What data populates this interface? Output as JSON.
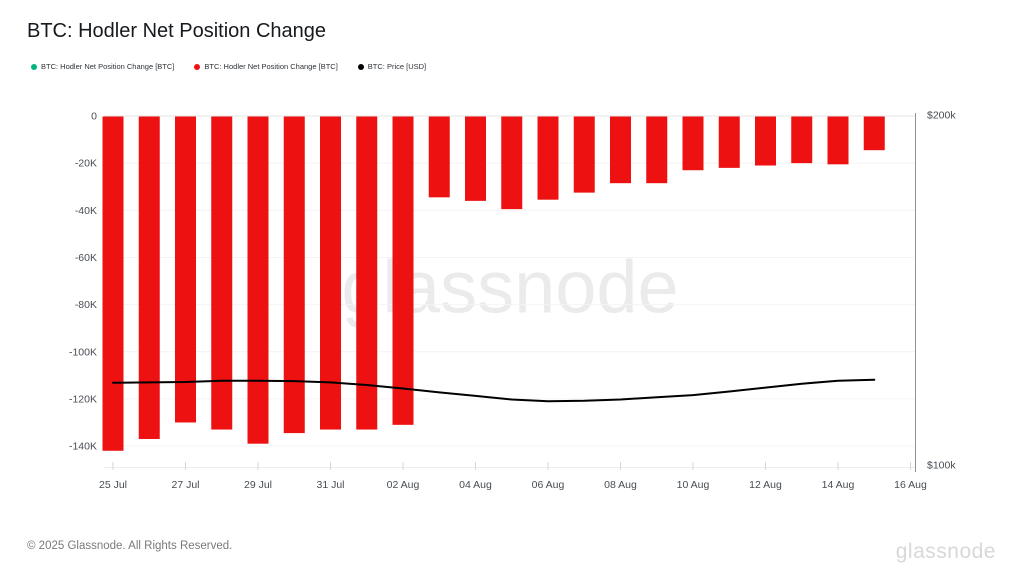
{
  "page": {
    "title": "BTC: Hodler Net Position Change"
  },
  "legend": {
    "items": [
      {
        "label": "BTC: Hodler Net Position Change [BTC]",
        "color": "#00b57f"
      },
      {
        "label": "BTC: Hodler Net Position Change [BTC]",
        "color": "#ed1111"
      },
      {
        "label": "BTC: Price [USD]",
        "color": "#000000"
      }
    ]
  },
  "chart_data": {
    "type": "bar",
    "title": "BTC: Hodler Net Position Change",
    "categories": [
      "25 Jul",
      "26 Jul",
      "27 Jul",
      "28 Jul",
      "29 Jul",
      "30 Jul",
      "31 Jul",
      "01 Aug",
      "02 Aug",
      "03 Aug",
      "04 Aug",
      "05 Aug",
      "06 Aug",
      "07 Aug",
      "08 Aug",
      "09 Aug",
      "10 Aug",
      "11 Aug",
      "12 Aug",
      "13 Aug",
      "14 Aug",
      "15 Aug"
    ],
    "series": [
      {
        "name": "BTC: Hodler Net Position Change [BTC]",
        "type": "bar",
        "color": "#ed1111",
        "axis": "left",
        "values": [
          -142000,
          -137000,
          -130000,
          -133000,
          -139000,
          -134500,
          -133000,
          -133000,
          -131000,
          -34500,
          -36000,
          -39500,
          -35500,
          -32500,
          -28500,
          -28500,
          -23000,
          -22000,
          -21000,
          -20000,
          -20500,
          -14500
        ]
      },
      {
        "name": "BTC: Price [USD]",
        "type": "line",
        "color": "#000000",
        "axis": "right",
        "values": [
          118200,
          118300,
          118400,
          118700,
          118700,
          118600,
          118300,
          117700,
          116900,
          116000,
          115200,
          114400,
          114000,
          114100,
          114400,
          114900,
          115400,
          116200,
          117100,
          118000,
          118700,
          118900
        ]
      }
    ],
    "left_axis": {
      "ticks": [
        "0",
        "-20K",
        "-40K",
        "-60K",
        "-80K",
        "-100K",
        "-120K",
        "-140K"
      ],
      "max": 0,
      "min": -150000,
      "gridline_step": 20000
    },
    "right_axis": {
      "ticks": [
        "$200k",
        "$100k"
      ],
      "max": 200000,
      "min": 100000,
      "scale": "log"
    },
    "x_axis": {
      "tick_labels": [
        "25 Jul",
        "27 Jul",
        "29 Jul",
        "31 Jul",
        "02 Aug",
        "04 Aug",
        "06 Aug",
        "08 Aug",
        "10 Aug",
        "12 Aug",
        "14 Aug",
        "16 Aug"
      ]
    },
    "grid": true,
    "legend_position": "top-left"
  },
  "watermark": {
    "text": "glassnode"
  },
  "footer": {
    "copyright": "© 2025 Glassnode. All Rights Reserved.",
    "brand": "glassnode"
  }
}
